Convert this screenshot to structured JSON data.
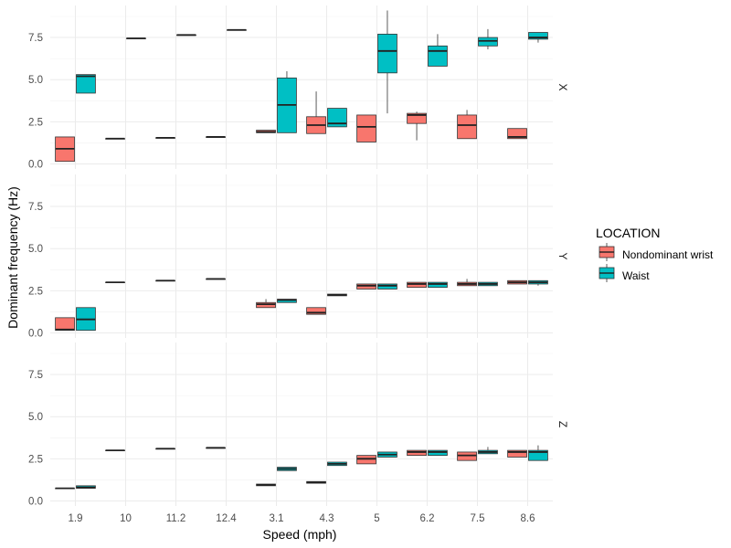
{
  "chart_data": {
    "type": "box",
    "xlabel": "Speed (mph)",
    "ylabel": "Dominant frequency (Hz)",
    "categories": [
      "1.9",
      "10",
      "11.2",
      "12.4",
      "3.1",
      "4.3",
      "5",
      "6.2",
      "7.5",
      "8.6"
    ],
    "ylim": [
      -0.3,
      9.4
    ],
    "yticks": [
      0.0,
      2.5,
      5.0,
      7.5
    ],
    "ytick_labels": [
      "0.0",
      "2.5",
      "5.0",
      "7.5"
    ],
    "grid": true,
    "legend": {
      "title": "LOCATION",
      "position": "right",
      "entries": [
        {
          "name": "Nondominant wrist",
          "color": "#F8766D"
        },
        {
          "name": "Waist",
          "color": "#00BFC4"
        }
      ]
    },
    "facets": [
      {
        "label": "X",
        "series": [
          {
            "name": "Nondominant wrist",
            "boxes": [
              {
                "cat": "1.9",
                "min": 0.15,
                "q1": 0.15,
                "median": 0.9,
                "q3": 1.6,
                "max": 1.6
              },
              {
                "cat": "10",
                "min": 1.5,
                "q1": 1.5,
                "median": 1.5,
                "q3": 1.5,
                "max": 1.5
              },
              {
                "cat": "11.2",
                "min": 1.55,
                "q1": 1.55,
                "median": 1.55,
                "q3": 1.55,
                "max": 1.55
              },
              {
                "cat": "12.4",
                "min": 1.6,
                "q1": 1.6,
                "median": 1.6,
                "q3": 1.6,
                "max": 1.6
              },
              {
                "cat": "3.1",
                "min": 1.85,
                "q1": 1.85,
                "median": 1.9,
                "q3": 2.0,
                "max": 2.0
              },
              {
                "cat": "4.3",
                "min": 1.8,
                "q1": 1.8,
                "median": 2.3,
                "q3": 2.8,
                "max": 4.3
              },
              {
                "cat": "5",
                "min": 1.3,
                "q1": 1.3,
                "median": 2.2,
                "q3": 2.9,
                "max": 2.9
              },
              {
                "cat": "6.2",
                "min": 1.4,
                "q1": 2.4,
                "median": 2.9,
                "q3": 3.0,
                "max": 3.1
              },
              {
                "cat": "7.5",
                "min": 1.5,
                "q1": 1.5,
                "median": 2.3,
                "q3": 2.9,
                "max": 3.2
              },
              {
                "cat": "8.6",
                "min": 1.5,
                "q1": 1.5,
                "median": 1.6,
                "q3": 2.1,
                "max": 2.1
              }
            ]
          },
          {
            "name": "Waist",
            "boxes": [
              {
                "cat": "1.9",
                "min": 4.2,
                "q1": 4.2,
                "median": 5.2,
                "q3": 5.3,
                "max": 5.3
              },
              {
                "cat": "10",
                "min": 7.45,
                "q1": 7.45,
                "median": 7.45,
                "q3": 7.45,
                "max": 7.45
              },
              {
                "cat": "11.2",
                "min": 7.65,
                "q1": 7.65,
                "median": 7.65,
                "q3": 7.65,
                "max": 7.65
              },
              {
                "cat": "12.4",
                "min": 7.95,
                "q1": 7.95,
                "median": 7.95,
                "q3": 7.95,
                "max": 7.95
              },
              {
                "cat": "3.1",
                "min": 1.85,
                "q1": 1.85,
                "median": 3.5,
                "q3": 5.1,
                "max": 5.5
              },
              {
                "cat": "4.3",
                "min": 2.2,
                "q1": 2.2,
                "median": 2.4,
                "q3": 3.3,
                "max": 3.3
              },
              {
                "cat": "5",
                "min": 3.0,
                "q1": 5.4,
                "median": 6.7,
                "q3": 7.7,
                "max": 9.1
              },
              {
                "cat": "6.2",
                "min": 5.8,
                "q1": 5.8,
                "median": 6.7,
                "q3": 7.0,
                "max": 7.7
              },
              {
                "cat": "7.5",
                "min": 6.8,
                "q1": 7.0,
                "median": 7.3,
                "q3": 7.5,
                "max": 8.0
              },
              {
                "cat": "8.6",
                "min": 7.2,
                "q1": 7.4,
                "median": 7.5,
                "q3": 7.8,
                "max": 7.8
              }
            ]
          }
        ]
      },
      {
        "label": "Y",
        "series": [
          {
            "name": "Nondominant wrist",
            "boxes": [
              {
                "cat": "1.9",
                "min": 0.15,
                "q1": 0.15,
                "median": 0.2,
                "q3": 0.9,
                "max": 0.9
              },
              {
                "cat": "10",
                "min": 3.0,
                "q1": 3.0,
                "median": 3.0,
                "q3": 3.0,
                "max": 3.0
              },
              {
                "cat": "11.2",
                "min": 3.1,
                "q1": 3.1,
                "median": 3.1,
                "q3": 3.1,
                "max": 3.1
              },
              {
                "cat": "12.4",
                "min": 3.2,
                "q1": 3.2,
                "median": 3.2,
                "q3": 3.2,
                "max": 3.2
              },
              {
                "cat": "3.1",
                "min": 1.5,
                "q1": 1.5,
                "median": 1.7,
                "q3": 1.8,
                "max": 2.0
              },
              {
                "cat": "4.3",
                "min": 1.1,
                "q1": 1.1,
                "median": 1.2,
                "q3": 1.5,
                "max": 1.5
              },
              {
                "cat": "5",
                "min": 2.6,
                "q1": 2.6,
                "median": 2.8,
                "q3": 2.9,
                "max": 2.9
              },
              {
                "cat": "6.2",
                "min": 2.7,
                "q1": 2.7,
                "median": 2.9,
                "q3": 3.0,
                "max": 3.0
              },
              {
                "cat": "7.5",
                "min": 2.8,
                "q1": 2.8,
                "median": 2.9,
                "q3": 3.0,
                "max": 3.2
              },
              {
                "cat": "8.6",
                "min": 2.9,
                "q1": 2.9,
                "median": 3.0,
                "q3": 3.1,
                "max": 3.1
              }
            ]
          },
          {
            "name": "Waist",
            "boxes": [
              {
                "cat": "1.9",
                "min": 0.15,
                "q1": 0.15,
                "median": 0.8,
                "q3": 1.5,
                "max": 1.5
              },
              {
                "cat": "3.1",
                "min": 1.8,
                "q1": 1.8,
                "median": 1.95,
                "q3": 2.0,
                "max": 2.0
              },
              {
                "cat": "4.3",
                "min": 2.2,
                "q1": 2.2,
                "median": 2.25,
                "q3": 2.3,
                "max": 2.3
              },
              {
                "cat": "5",
                "min": 2.6,
                "q1": 2.6,
                "median": 2.8,
                "q3": 2.9,
                "max": 2.9
              },
              {
                "cat": "6.2",
                "min": 2.7,
                "q1": 2.7,
                "median": 2.9,
                "q3": 3.0,
                "max": 3.0
              },
              {
                "cat": "7.5",
                "min": 2.8,
                "q1": 2.8,
                "median": 2.9,
                "q3": 3.0,
                "max": 3.0
              },
              {
                "cat": "8.6",
                "min": 2.8,
                "q1": 2.9,
                "median": 3.0,
                "q3": 3.1,
                "max": 3.1
              }
            ]
          }
        ]
      },
      {
        "label": "Z",
        "series": [
          {
            "name": "Nondominant wrist",
            "boxes": [
              {
                "cat": "1.9",
                "min": 0.75,
                "q1": 0.75,
                "median": 0.75,
                "q3": 0.75,
                "max": 0.75
              },
              {
                "cat": "10",
                "min": 3.0,
                "q1": 3.0,
                "median": 3.0,
                "q3": 3.0,
                "max": 3.0
              },
              {
                "cat": "11.2",
                "min": 3.1,
                "q1": 3.1,
                "median": 3.1,
                "q3": 3.1,
                "max": 3.1
              },
              {
                "cat": "12.4",
                "min": 3.15,
                "q1": 3.15,
                "median": 3.15,
                "q3": 3.15,
                "max": 3.15
              },
              {
                "cat": "3.1",
                "min": 0.9,
                "q1": 0.9,
                "median": 0.95,
                "q3": 1.0,
                "max": 1.0
              },
              {
                "cat": "4.3",
                "min": 1.05,
                "q1": 1.05,
                "median": 1.1,
                "q3": 1.15,
                "max": 1.15
              },
              {
                "cat": "5",
                "min": 2.2,
                "q1": 2.2,
                "median": 2.5,
                "q3": 2.7,
                "max": 2.7
              },
              {
                "cat": "6.2",
                "min": 2.7,
                "q1": 2.7,
                "median": 2.9,
                "q3": 3.0,
                "max": 3.0
              },
              {
                "cat": "7.5",
                "min": 2.4,
                "q1": 2.4,
                "median": 2.7,
                "q3": 2.9,
                "max": 2.9
              },
              {
                "cat": "8.6",
                "min": 2.6,
                "q1": 2.6,
                "median": 2.9,
                "q3": 3.0,
                "max": 3.0
              }
            ]
          },
          {
            "name": "Waist",
            "boxes": [
              {
                "cat": "1.9",
                "min": 0.75,
                "q1": 0.75,
                "median": 0.8,
                "q3": 0.9,
                "max": 0.9
              },
              {
                "cat": "3.1",
                "min": 1.8,
                "q1": 1.8,
                "median": 1.9,
                "q3": 2.0,
                "max": 2.0
              },
              {
                "cat": "4.3",
                "min": 2.1,
                "q1": 2.1,
                "median": 2.2,
                "q3": 2.3,
                "max": 2.3
              },
              {
                "cat": "5",
                "min": 2.6,
                "q1": 2.6,
                "median": 2.75,
                "q3": 2.9,
                "max": 2.9
              },
              {
                "cat": "6.2",
                "min": 2.7,
                "q1": 2.7,
                "median": 2.9,
                "q3": 3.0,
                "max": 3.0
              },
              {
                "cat": "7.5",
                "min": 2.8,
                "q1": 2.8,
                "median": 2.9,
                "q3": 3.0,
                "max": 3.2
              },
              {
                "cat": "8.6",
                "min": 2.4,
                "q1": 2.4,
                "median": 2.9,
                "q3": 3.0,
                "max": 3.3
              }
            ]
          }
        ]
      }
    ]
  }
}
